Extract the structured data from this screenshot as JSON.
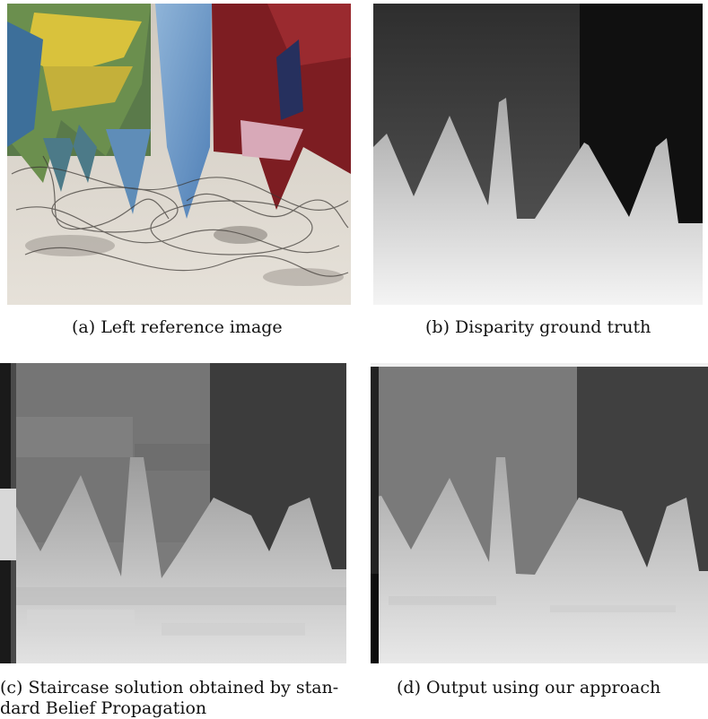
{
  "figure": {
    "panels": [
      {
        "id": "a",
        "caption": "(a) Left reference image"
      },
      {
        "id": "b",
        "caption": "(b) Disparity ground truth"
      },
      {
        "id": "c",
        "caption_line1": "(c) Staircase solution obtained by stan-",
        "caption_line2": "dard Belief Propagation"
      },
      {
        "id": "d",
        "caption": "(d) Output using our approach"
      }
    ]
  }
}
